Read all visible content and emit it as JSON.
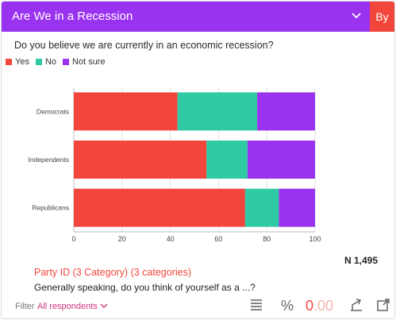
{
  "card": {
    "title": "Are We in a Recession",
    "by_label": "By",
    "question": "Do you believe we are currently in an economic recession?",
    "legend": [
      {
        "label": "Yes",
        "color": "#f2463c"
      },
      {
        "label": "No",
        "color": "#2fcaa3"
      },
      {
        "label": "Not sure",
        "color": "#9a33f0"
      }
    ],
    "n_label": "N 1,495",
    "party_label": "Party ID (3 Category) (3 categories)",
    "party_question": "Generally speaking, do you think of yourself as a ...?",
    "filter_label": "Filter",
    "filter_value": "All respondents",
    "decimals_main": "0",
    "decimals_extra": ".00",
    "percent_symbol": "%"
  },
  "chart_data": {
    "type": "bar",
    "orientation": "horizontal",
    "stacked": true,
    "categories": [
      "Democrats",
      "Independents",
      "Republicans"
    ],
    "series": [
      {
        "name": "Yes",
        "color": "#f2463c",
        "values": [
          43,
          55,
          71
        ]
      },
      {
        "name": "No",
        "color": "#2fcaa3",
        "values": [
          33,
          17,
          14
        ]
      },
      {
        "name": "Not sure",
        "color": "#9a33f0",
        "values": [
          24,
          28,
          15
        ]
      }
    ],
    "xlim": [
      0,
      100
    ],
    "xticks": [
      "0",
      "20",
      "40",
      "60",
      "80",
      "100"
    ],
    "grid": true
  }
}
